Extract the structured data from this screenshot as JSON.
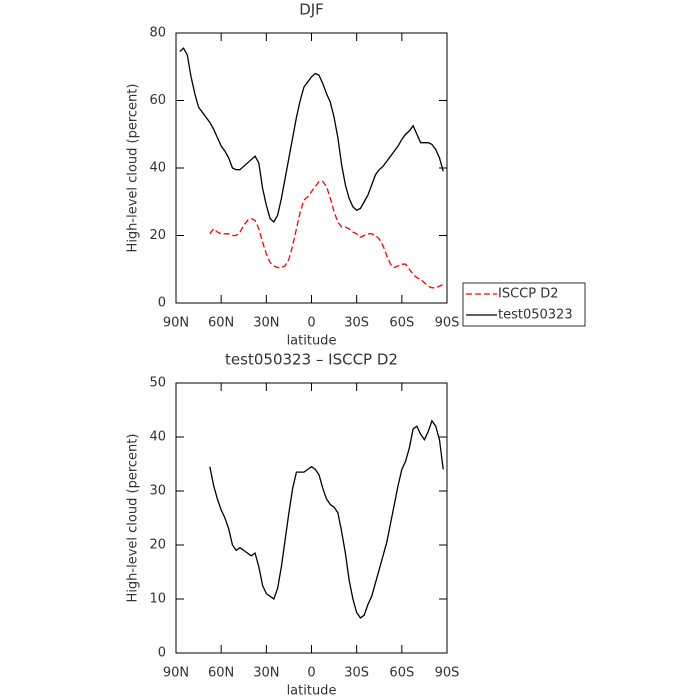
{
  "chart_data": [
    {
      "type": "line",
      "title": "DJF",
      "xlabel": "latitude",
      "ylabel": "High-level cloud (percent)",
      "x": [
        87.5,
        85,
        82.5,
        80,
        77.5,
        75,
        72.5,
        70,
        67.5,
        65,
        62.5,
        60,
        57.5,
        55,
        52.5,
        50,
        47.5,
        45,
        42.5,
        40,
        37.5,
        35,
        32.5,
        30,
        27.5,
        25,
        22.5,
        20,
        17.5,
        15,
        12.5,
        10,
        7.5,
        5,
        2.5,
        0,
        -2.5,
        -5,
        -7.5,
        -10,
        -12.5,
        -15,
        -17.5,
        -20,
        -22.5,
        -25,
        -27.5,
        -30,
        -32.5,
        -35,
        -37.5,
        -40,
        -42.5,
        -45,
        -47.5,
        -50,
        -52.5,
        -55,
        -57.5,
        -60,
        -62.5,
        -65,
        -67.5,
        -70,
        -72.5,
        -75,
        -77.5,
        -80,
        -82.5,
        -85,
        -87.5
      ],
      "series": [
        {
          "name": "ISCCP D2",
          "color": "#ff0000",
          "line_style": "dashed",
          "values": [
            null,
            null,
            null,
            null,
            null,
            null,
            null,
            null,
            20.5,
            22,
            21,
            20.5,
            20.5,
            20.5,
            20,
            20,
            21,
            23,
            24.5,
            25,
            24.5,
            22,
            18,
            14.5,
            12,
            11,
            10.5,
            10.5,
            11,
            13,
            17,
            22,
            27,
            30.5,
            31.5,
            33,
            34.5,
            36,
            36,
            34.5,
            31,
            27,
            24,
            22.5,
            22.5,
            22,
            21,
            20.5,
            19.5,
            20,
            20.5,
            20.5,
            20,
            19,
            17,
            14,
            11.5,
            10.5,
            11,
            11.5,
            11.5,
            10,
            8.5,
            7.5,
            7,
            6,
            5,
            4.5,
            4.5,
            5,
            5.5
          ]
        },
        {
          "name": "test050323",
          "color": "#000000",
          "line_style": "solid",
          "values": [
            74.5,
            75.5,
            73.5,
            67,
            62,
            58,
            56.5,
            55,
            53.5,
            51.5,
            49,
            46.5,
            45,
            43,
            40,
            39.5,
            39.5,
            40.5,
            41.5,
            42.5,
            43.5,
            41.5,
            34,
            29,
            25,
            24,
            26,
            31,
            37,
            43,
            49,
            55,
            60,
            64,
            65.5,
            67,
            68,
            67.5,
            65,
            62,
            59.5,
            55,
            49,
            41,
            35,
            31,
            28.5,
            27.5,
            28,
            30,
            32,
            35,
            38,
            39.5,
            40.5,
            42,
            43.5,
            45,
            46.5,
            48.5,
            50,
            51,
            52.5,
            50,
            47.5,
            47.5,
            47.5,
            47,
            45.5,
            43,
            39
          ]
        }
      ],
      "xlim": [
        90,
        -90
      ],
      "xticks": [
        {
          "value": 90,
          "label": "90N"
        },
        {
          "value": 60,
          "label": "60N"
        },
        {
          "value": 30,
          "label": "30N"
        },
        0,
        {
          "value": -30,
          "label": "30S"
        },
        {
          "value": -60,
          "label": "60S"
        },
        {
          "value": -90,
          "label": "90S"
        }
      ],
      "ylim": [
        0,
        80
      ],
      "yticks": [
        0,
        20,
        40,
        60,
        80
      ],
      "legend": "right"
    },
    {
      "type": "line",
      "title": "test050323 – ISCCP D2",
      "xlabel": "latitude",
      "ylabel": "High-level cloud (percent)",
      "x": [
        87.5,
        85,
        82.5,
        80,
        77.5,
        75,
        72.5,
        70,
        67.5,
        65,
        62.5,
        60,
        57.5,
        55,
        52.5,
        50,
        47.5,
        45,
        42.5,
        40,
        37.5,
        35,
        32.5,
        30,
        27.5,
        25,
        22.5,
        20,
        17.5,
        15,
        12.5,
        10,
        7.5,
        5,
        2.5,
        0,
        -2.5,
        -5,
        -7.5,
        -10,
        -12.5,
        -15,
        -17.5,
        -20,
        -22.5,
        -25,
        -27.5,
        -30,
        -32.5,
        -35,
        -37.5,
        -40,
        -42.5,
        -45,
        -47.5,
        -50,
        -52.5,
        -55,
        -57.5,
        -60,
        -62.5,
        -65,
        -67.5,
        -70,
        -72.5,
        -75,
        -77.5,
        -80,
        -82.5,
        -85,
        -87.5
      ],
      "series": [
        {
          "color": "#000000",
          "line_style": "solid",
          "values": [
            null,
            null,
            null,
            null,
            null,
            null,
            null,
            null,
            34.5,
            31,
            28.5,
            26.5,
            25,
            23,
            20,
            19,
            19.5,
            19,
            18.5,
            18,
            18.5,
            16,
            12.5,
            11,
            10.5,
            10,
            12,
            16,
            21,
            26,
            30.5,
            33.5,
            33.5,
            33.5,
            34,
            34.5,
            34,
            33,
            30.5,
            28.5,
            27.5,
            27,
            26,
            22.5,
            18.5,
            13.5,
            10,
            7.5,
            6.5,
            7,
            9,
            10.5,
            13,
            15.5,
            18,
            20.5,
            24,
            27.5,
            31,
            34,
            35.5,
            38,
            41.5,
            42,
            40.5,
            39.5,
            41,
            43,
            42,
            39.5,
            34
          ]
        }
      ],
      "xlim": [
        90,
        -90
      ],
      "xticks": [
        {
          "value": 90,
          "label": "90N"
        },
        {
          "value": 60,
          "label": "60N"
        },
        {
          "value": 30,
          "label": "30N"
        },
        0,
        {
          "value": -30,
          "label": "30S"
        },
        {
          "value": -60,
          "label": "60S"
        },
        {
          "value": -90,
          "label": "90S"
        }
      ],
      "ylim": [
        0,
        50
      ],
      "yticks": [
        0,
        10,
        20,
        30,
        40,
        50
      ]
    }
  ]
}
